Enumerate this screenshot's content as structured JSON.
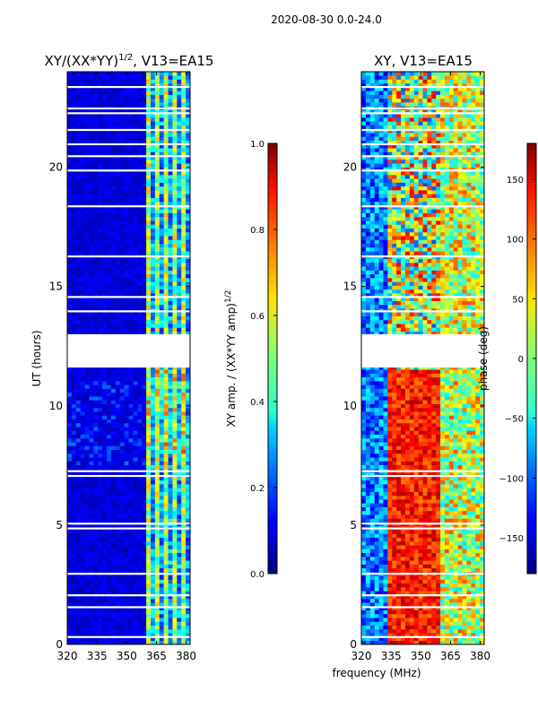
{
  "chart_data": {
    "type": "heatmap",
    "suptitle": "2020-08-30 0.0-24.0",
    "xlabel": "frequency (MHz)",
    "panels": [
      {
        "title": "XY/(XX*YY)",
        "title_sup": "1/2",
        "title_suffix": ", V13=EA15",
        "ylabel": "UT (hours)",
        "xticks": [
          "320",
          "335",
          "350",
          "365",
          "380"
        ],
        "xlim": [
          320,
          382
        ],
        "yticks": [
          "0",
          "5",
          "10",
          "15",
          "20"
        ],
        "ylim": [
          0,
          24
        ],
        "colorbar": {
          "label": "XY amp. / (XX*YY amp)",
          "label_sup": "1/2",
          "ticks": [
            "0.0",
            "0.2",
            "0.4",
            "0.6",
            "0.8",
            "1.0"
          ],
          "range": [
            0,
            1
          ]
        }
      },
      {
        "title": "XY, V13=EA15",
        "ylabel": "",
        "xticks": [
          "320",
          "335",
          "350",
          "365",
          "380"
        ],
        "xlim": [
          320,
          382
        ],
        "yticks": [
          "0",
          "5",
          "10",
          "15",
          "20"
        ],
        "ylim": [
          0,
          24
        ],
        "colorbar": {
          "label": "phase (deg)",
          "ticks": [
            "−150",
            "−100",
            "−50",
            "0",
            "50",
            "100",
            "150"
          ],
          "range": [
            -180,
            180
          ]
        }
      }
    ],
    "flagged_time_gap_hours": [
      11.6,
      13.0
    ]
  }
}
